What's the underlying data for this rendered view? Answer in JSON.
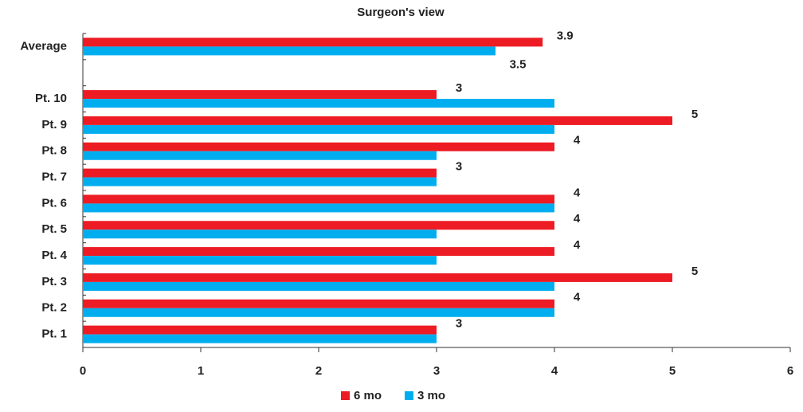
{
  "chart_data": {
    "type": "bar",
    "orientation": "horizontal",
    "title": "Surgeon's view",
    "categories": [
      "Average",
      null,
      "Pt. 10",
      "Pt. 9",
      "Pt. 8",
      "Pt. 7",
      "Pt. 6",
      "Pt. 5",
      "Pt. 4",
      "Pt. 3",
      "Pt. 2",
      "Pt. 1"
    ],
    "series": [
      {
        "name": "6 mo",
        "color": "#ed1c24",
        "values": [
          3.9,
          null,
          3,
          5,
          4,
          3,
          4,
          4,
          4,
          5,
          4,
          3
        ],
        "value_labels": [
          "3.9",
          null,
          "3",
          "5",
          "4",
          "3",
          "4",
          "4",
          "4",
          "5",
          "4",
          "3"
        ]
      },
      {
        "name": "3 mo",
        "color": "#00aeef",
        "values": [
          3.5,
          null,
          4,
          4,
          3,
          3,
          4,
          3,
          3,
          4,
          4,
          3
        ],
        "value_labels": [
          "3.5",
          null,
          null,
          null,
          null,
          null,
          null,
          null,
          null,
          null,
          null,
          null
        ]
      }
    ],
    "xlim": [
      0,
      6
    ],
    "xticks": [
      0,
      1,
      2,
      3,
      4,
      5,
      6
    ],
    "legend": "bottom"
  }
}
